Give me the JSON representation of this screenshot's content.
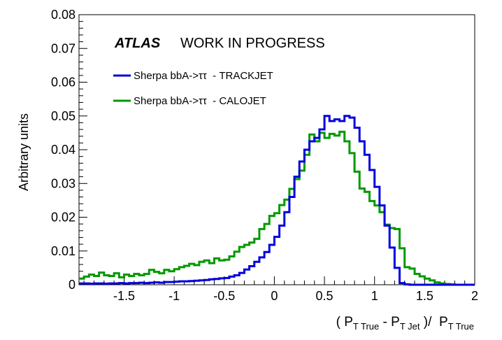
{
  "chart_data": {
    "type": "line",
    "title": "",
    "ylabel": "Arbitrary units",
    "xlabel": {
      "open": "(",
      "p_true": "P",
      "true_sub": "T True",
      "minus": "-",
      "p_jet": "P",
      "jet_sub": "T Jet",
      "close": ")/",
      "p_denom": "P",
      "denom_sub": "T True"
    },
    "xlim": [
      -1.95,
      2.0
    ],
    "ylim": [
      0,
      0.08
    ],
    "grid": false,
    "legend_position": "top-left",
    "x_ticks": [
      {
        "value": -1.5,
        "label": "-1.5"
      },
      {
        "value": -1.0,
        "label": "-1"
      },
      {
        "value": -0.5,
        "label": "-0.5"
      },
      {
        "value": 0.0,
        "label": "0"
      },
      {
        "value": 0.5,
        "label": "0.5"
      },
      {
        "value": 1.0,
        "label": "1"
      },
      {
        "value": 1.5,
        "label": "1.5"
      },
      {
        "value": 2.0,
        "label": "2"
      }
    ],
    "y_ticks": [
      {
        "value": 0,
        "label": "0"
      },
      {
        "value": 0.01,
        "label": "0.01"
      },
      {
        "value": 0.02,
        "label": "0.02"
      },
      {
        "value": 0.03,
        "label": "0.03"
      },
      {
        "value": 0.04,
        "label": "0.04"
      },
      {
        "value": 0.05,
        "label": "0.05"
      },
      {
        "value": 0.06,
        "label": "0.06"
      },
      {
        "value": 0.07,
        "label": "0.07"
      },
      {
        "value": 0.08,
        "label": "0.08"
      }
    ],
    "annotation": {
      "atlas": "ATLAS",
      "status": "WORK IN PROGRESS"
    },
    "series": [
      {
        "name": "Sherpa bbA->ττ  - TRACKJET",
        "color": "#0000dd",
        "bin_start": -1.95,
        "bin_width": 0.05,
        "values": [
          0.0004,
          0.0004,
          0.0003,
          0.0004,
          0.0004,
          0.0003,
          0.0004,
          0.0004,
          0.0005,
          0.0004,
          0.0005,
          0.0005,
          0.0006,
          0.0005,
          0.0006,
          0.0007,
          0.0006,
          0.0008,
          0.0008,
          0.0009,
          0.001,
          0.001,
          0.0011,
          0.0012,
          0.0013,
          0.0014,
          0.0016,
          0.0017,
          0.0019,
          0.002,
          0.0024,
          0.0028,
          0.0035,
          0.0045,
          0.0055,
          0.0068,
          0.0081,
          0.0097,
          0.0118,
          0.0142,
          0.0175,
          0.0215,
          0.026,
          0.032,
          0.0365,
          0.04,
          0.0425,
          0.0435,
          0.046,
          0.05,
          0.0485,
          0.049,
          0.0485,
          0.05,
          0.0495,
          0.0465,
          0.0425,
          0.0385,
          0.034,
          0.029,
          0.0235,
          0.0175,
          0.011,
          0.005,
          0.0005,
          0.0001,
          0.0,
          0.0,
          0.0,
          0.0,
          0.0,
          0.0,
          0.0,
          0.0,
          0.0,
          0.0,
          0.0,
          0.0,
          0.0
        ]
      },
      {
        "name": "Sherpa bbA->ττ  - CALOJET",
        "color": "#009900",
        "bin_start": -1.95,
        "bin_width": 0.05,
        "values": [
          0.0018,
          0.0024,
          0.003,
          0.0026,
          0.0036,
          0.0028,
          0.0026,
          0.0034,
          0.0022,
          0.003,
          0.0026,
          0.0032,
          0.0028,
          0.0032,
          0.0044,
          0.0038,
          0.0034,
          0.0044,
          0.004,
          0.0046,
          0.0052,
          0.0056,
          0.0062,
          0.0058,
          0.0068,
          0.0072,
          0.0064,
          0.0078,
          0.0072,
          0.0074,
          0.0084,
          0.0098,
          0.0112,
          0.0118,
          0.0125,
          0.0136,
          0.0165,
          0.018,
          0.0204,
          0.0212,
          0.0236,
          0.0252,
          0.0284,
          0.0313,
          0.0338,
          0.0385,
          0.0445,
          0.0425,
          0.045,
          0.0435,
          0.0447,
          0.0442,
          0.0453,
          0.0425,
          0.039,
          0.0335,
          0.0285,
          0.0275,
          0.0248,
          0.0235,
          0.0215,
          0.0178,
          0.0168,
          0.0165,
          0.0108,
          0.0052,
          0.0048,
          0.0032,
          0.0025,
          0.0018,
          0.0013,
          0.0007,
          0.0004,
          0.0002,
          0.0001,
          0.0,
          0.0,
          0.0,
          0.0
        ]
      }
    ]
  }
}
